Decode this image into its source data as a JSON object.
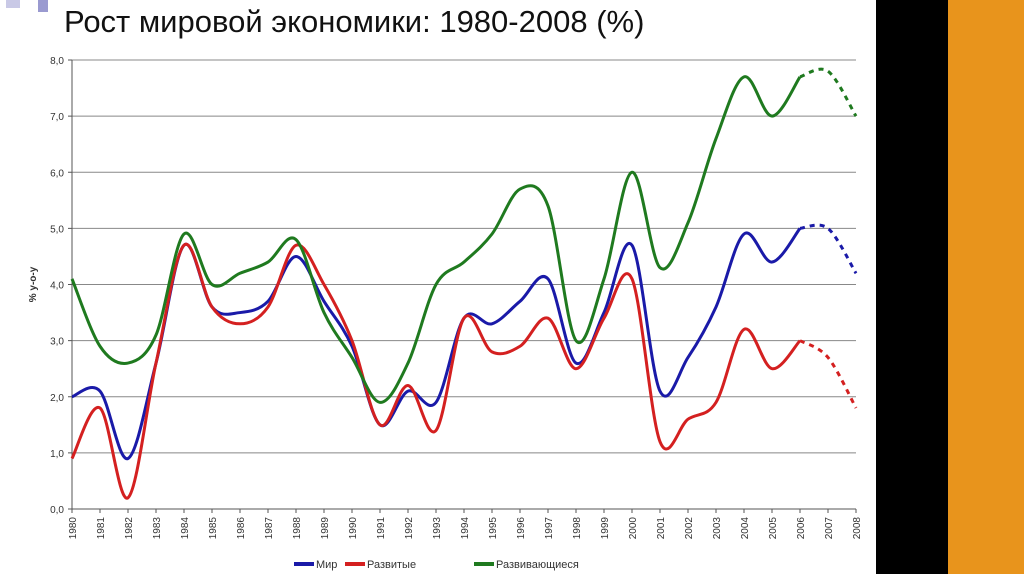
{
  "title": "Рост мировой экономики: 1980-2008 (%)",
  "chart_data": {
    "type": "line",
    "title": "Рост мировой экономики: 1980-2008 (%)",
    "xlabel": "",
    "ylabel": "% y-o-y",
    "ylim": [
      0,
      8
    ],
    "yticks": [
      "0,0",
      "1,0",
      "2,0",
      "3,0",
      "4,0",
      "5,0",
      "6,0",
      "7,0",
      "8,0"
    ],
    "x": [
      "1980",
      "1981",
      "1982",
      "1983",
      "1984",
      "1985",
      "1986",
      "1987",
      "1988",
      "1989",
      "1990",
      "1991",
      "1992",
      "1993",
      "1994",
      "1995",
      "1996",
      "1997",
      "1998",
      "1999",
      "2000",
      "2001",
      "2002",
      "2003",
      "2004",
      "2005",
      "2006",
      "2007",
      "2008"
    ],
    "forecast_from": "2006",
    "grid": true,
    "legend_position": "bottom",
    "series": [
      {
        "name": "Мир",
        "color": "#1a1aa8",
        "values": [
          2.0,
          2.1,
          0.9,
          2.6,
          4.7,
          3.6,
          3.5,
          3.7,
          4.5,
          3.7,
          2.9,
          1.5,
          2.1,
          1.9,
          3.4,
          3.3,
          3.7,
          4.1,
          2.6,
          3.5,
          4.7,
          2.1,
          2.7,
          3.6,
          4.9,
          4.4,
          5.0,
          5.0,
          4.2
        ]
      },
      {
        "name": "Развитые",
        "color": "#d42020",
        "values": [
          0.9,
          1.8,
          0.2,
          2.6,
          4.7,
          3.6,
          3.3,
          3.6,
          4.7,
          4.0,
          3.0,
          1.5,
          2.2,
          1.4,
          3.4,
          2.8,
          2.9,
          3.4,
          2.5,
          3.4,
          4.1,
          1.2,
          1.6,
          1.9,
          3.2,
          2.5,
          3.0,
          2.7,
          1.8
        ]
      },
      {
        "name": "Развивающиеся",
        "color": "#1f7a1f",
        "values": [
          4.1,
          2.9,
          2.6,
          3.1,
          4.9,
          4.0,
          4.2,
          4.4,
          4.8,
          3.5,
          2.7,
          1.9,
          2.6,
          4.0,
          4.4,
          4.9,
          5.7,
          5.4,
          3.0,
          4.1,
          6.0,
          4.3,
          5.1,
          6.6,
          7.7,
          7.0,
          7.7,
          7.8,
          7.0
        ]
      }
    ]
  }
}
